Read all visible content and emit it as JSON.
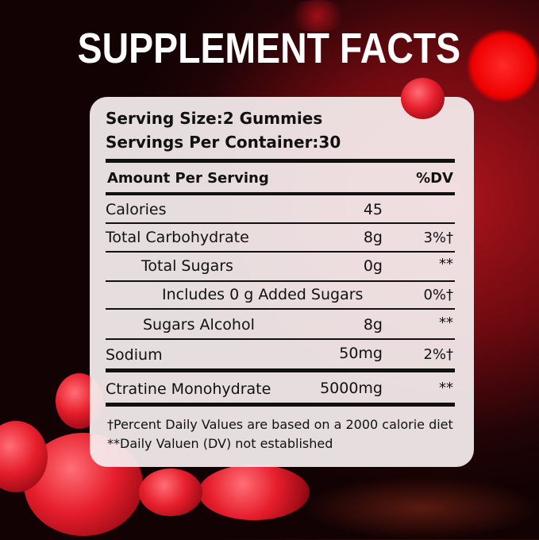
{
  "title": "SUPPLEMENT FACTS",
  "serving_size": "Serving Size:2 Gummies",
  "servings_per_container": "Servings Per Container:30",
  "header": {
    "amount": "Amount Per Serving",
    "dv": "%DV"
  },
  "rows": [
    {
      "label": "Calories",
      "amount": "45",
      "dv": ""
    },
    {
      "label": "Total Carbohydrate",
      "amount": "8g",
      "dv": "3%†"
    },
    {
      "label": "Total Sugars",
      "amount": "0g",
      "dv": "**"
    },
    {
      "label": "Includes 0 g Added Sugars",
      "amount": "",
      "dv": "0%†"
    },
    {
      "label": "Sugars Alcohol",
      "amount": "8g",
      "dv": "**"
    },
    {
      "label": "Sodium",
      "amount": "50mg",
      "dv": "2%†"
    },
    {
      "label": "Ctratine Monohydrate",
      "amount": "5000mg",
      "dv": "**"
    }
  ],
  "footnotes": [
    "†Percent Daily Values are based on a 2000 calorie diet",
    "**Daily Valuen (DV) not established"
  ],
  "colors": {
    "accent": "#e61e2c",
    "background": "#6d0a10",
    "panel": "#f5eeef"
  }
}
